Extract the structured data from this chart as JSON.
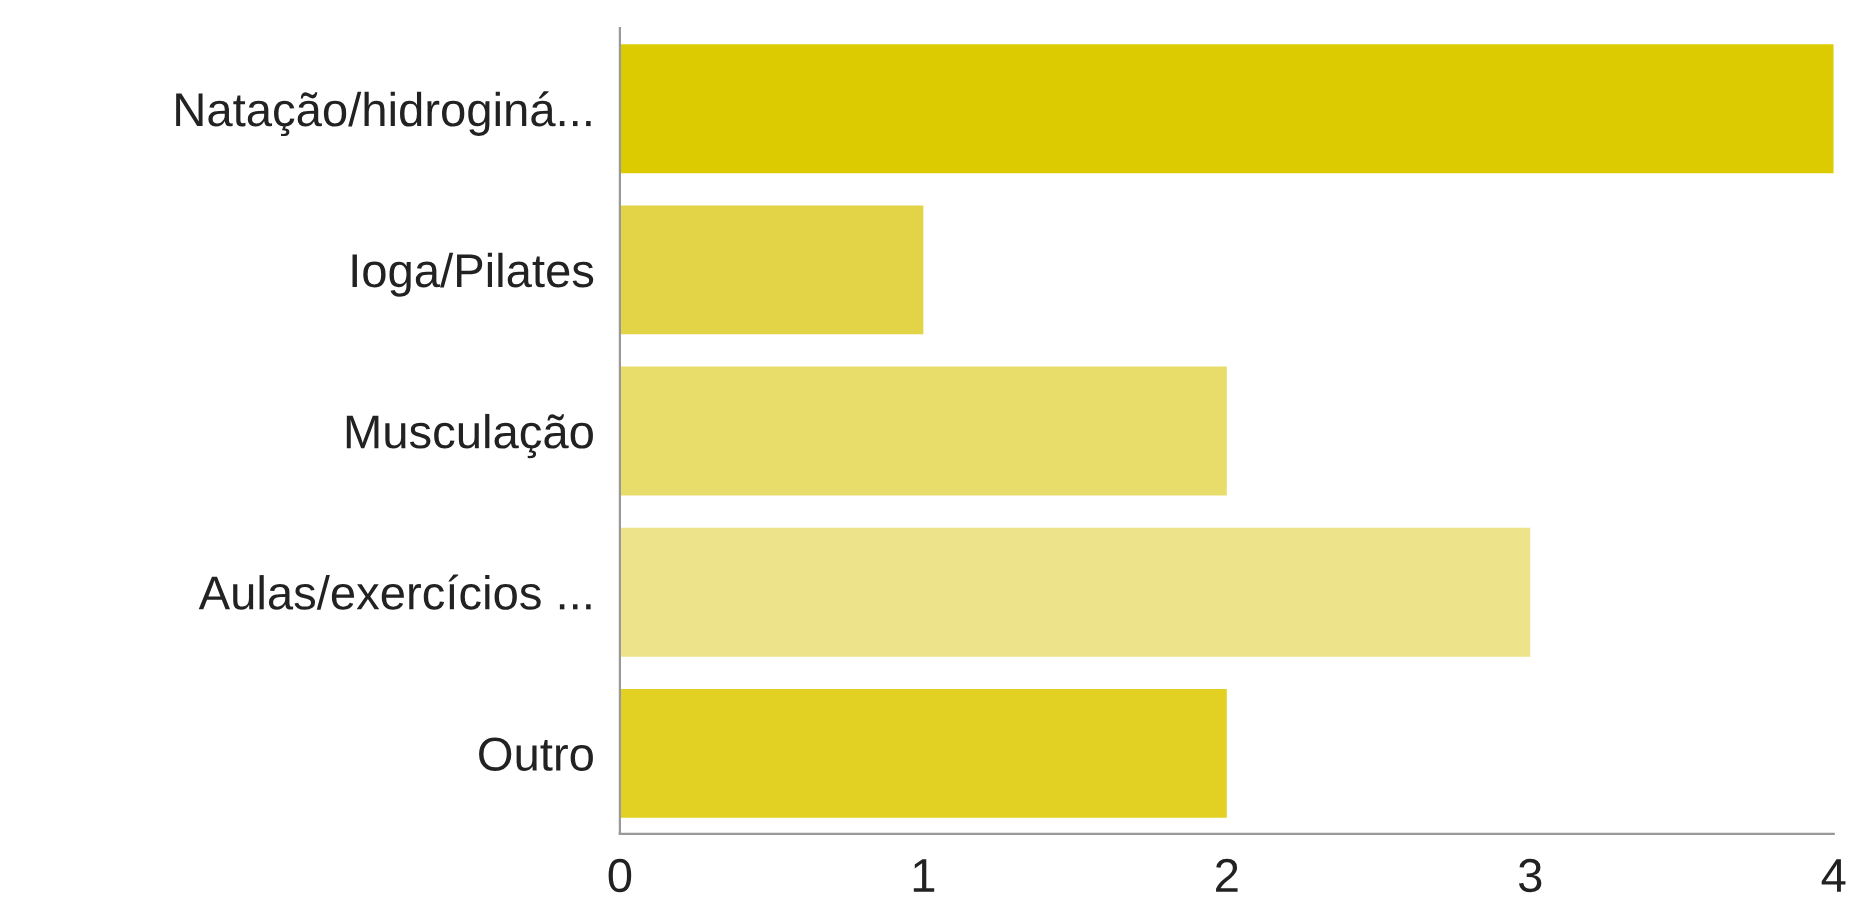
{
  "chart_data": {
    "type": "bar",
    "orientation": "horizontal",
    "categories": [
      "Natação/hidroginá...",
      "Ioga/Pilates",
      "Musculação",
      "Aulas/exercícios ...",
      "Outro"
    ],
    "values": [
      4,
      1,
      2,
      3,
      2
    ],
    "colors": [
      "#dccb00",
      "#e3d447",
      "#e8dd6a",
      "#ede38a",
      "#e2d022"
    ],
    "xlim": [
      0,
      4
    ],
    "xticks": [
      0,
      1,
      2,
      3,
      4
    ],
    "grid": false
  }
}
